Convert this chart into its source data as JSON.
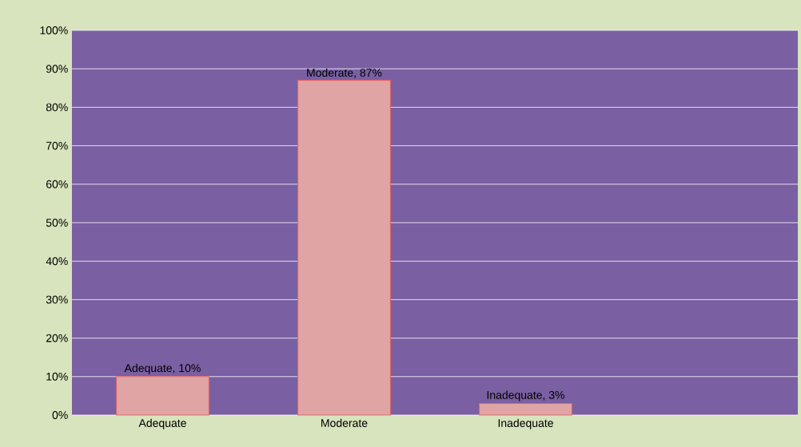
{
  "chart_data": {
    "type": "bar",
    "categories": [
      "Adequate",
      "Moderate",
      "Inadequate",
      null
    ],
    "values": [
      10,
      87,
      3,
      null
    ],
    "color": "#e0a4a4",
    "value_labels": [
      "Adequate, 10%",
      "Moderate, 87%",
      "Inadequate, 3%",
      null
    ],
    "ylim": [
      0,
      100
    ],
    "yticks": [
      {
        "value": 0,
        "label": "0%"
      },
      {
        "value": 10,
        "label": "10%"
      },
      {
        "value": 20,
        "label": "20%"
      },
      {
        "value": 30,
        "label": "30%"
      },
      {
        "value": 40,
        "label": "40%"
      },
      {
        "value": 50,
        "label": "50%"
      },
      {
        "value": 60,
        "label": "60%"
      },
      {
        "value": 70,
        "label": "70%"
      },
      {
        "value": 80,
        "label": "80%"
      },
      {
        "value": 90,
        "label": "90%"
      },
      {
        "value": 100,
        "label": "100%"
      }
    ],
    "grid": true
  }
}
